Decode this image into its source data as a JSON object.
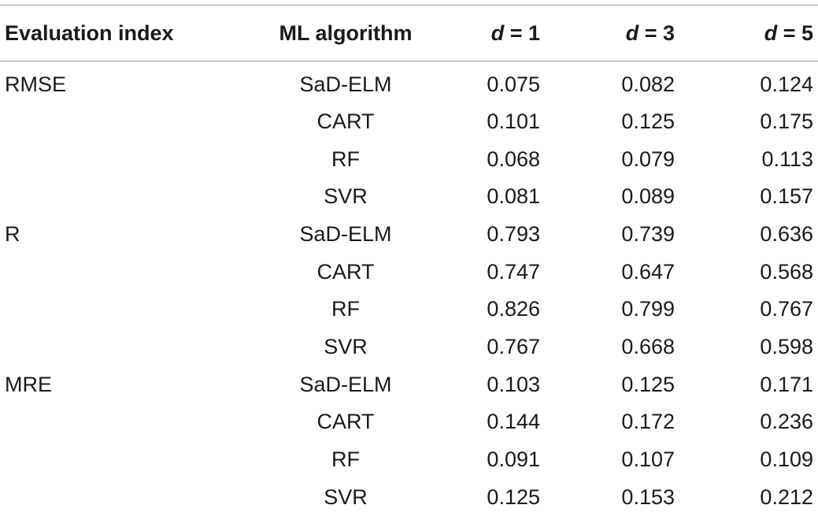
{
  "table": {
    "headers": {
      "evaluation_index": "Evaluation index",
      "ml_algorithm": "ML algorithm",
      "d_symbol": "d",
      "d1_suffix": " = 1",
      "d3_suffix": " = 3",
      "d5_suffix": " = 5"
    },
    "rows": [
      {
        "index": "RMSE",
        "alg": "SaD-ELM",
        "d1": "0.075",
        "d3": "0.082",
        "d5": "0.124"
      },
      {
        "index": "",
        "alg": "CART",
        "d1": "0.101",
        "d3": "0.125",
        "d5": "0.175"
      },
      {
        "index": "",
        "alg": "RF",
        "d1": "0.068",
        "d3": "0.079",
        "d5": "0.113"
      },
      {
        "index": "",
        "alg": "SVR",
        "d1": "0.081",
        "d3": "0.089",
        "d5": "0.157"
      },
      {
        "index": "R",
        "alg": "SaD-ELM",
        "d1": "0.793",
        "d3": "0.739",
        "d5": "0.636"
      },
      {
        "index": "",
        "alg": "CART",
        "d1": "0.747",
        "d3": "0.647",
        "d5": "0.568"
      },
      {
        "index": "",
        "alg": "RF",
        "d1": "0.826",
        "d3": "0.799",
        "d5": "0.767"
      },
      {
        "index": "",
        "alg": "SVR",
        "d1": "0.767",
        "d3": "0.668",
        "d5": "0.598"
      },
      {
        "index": "MRE",
        "alg": "SaD-ELM",
        "d1": "0.103",
        "d3": "0.125",
        "d5": "0.171"
      },
      {
        "index": "",
        "alg": "CART",
        "d1": "0.144",
        "d3": "0.172",
        "d5": "0.236"
      },
      {
        "index": "",
        "alg": "RF",
        "d1": "0.091",
        "d3": "0.107",
        "d5": "0.109"
      },
      {
        "index": "",
        "alg": "SVR",
        "d1": "0.125",
        "d3": "0.153",
        "d5": "0.212"
      }
    ]
  }
}
